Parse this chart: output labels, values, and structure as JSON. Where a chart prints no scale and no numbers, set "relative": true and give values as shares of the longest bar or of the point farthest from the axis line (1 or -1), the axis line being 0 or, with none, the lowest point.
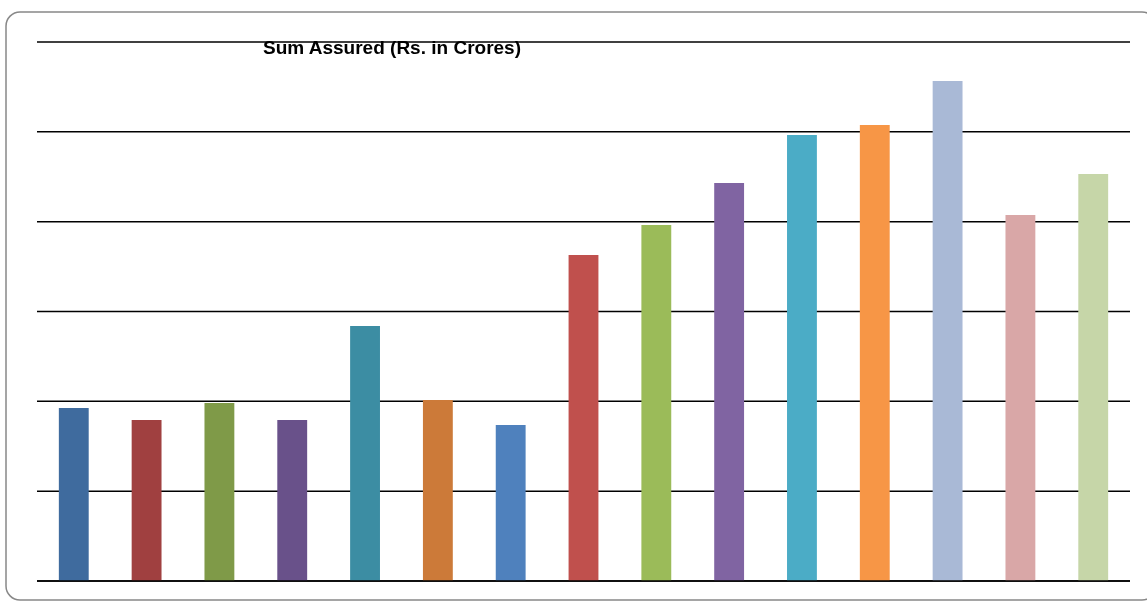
{
  "chart_data": {
    "type": "bar",
    "title": "Sum Assured (Rs. in Crores)",
    "relative": true,
    "grid": true,
    "categories": [
      null,
      null,
      null,
      null,
      null,
      null,
      null,
      null,
      null,
      null,
      null,
      null,
      null,
      null,
      null
    ],
    "values": [
      0.346,
      0.322,
      0.356,
      0.322,
      0.51,
      0.362,
      0.312,
      0.652,
      0.712,
      0.796,
      0.892,
      0.912,
      1,
      0.732,
      0.814
    ],
    "colors": [
      "#3f6b9e",
      "#a04040",
      "#7f9a48",
      "#69518a",
      "#3c8da3",
      "#cc7a39",
      "#4f81bd",
      "#c0504d",
      "#9bbb59",
      "#8064a2",
      "#4bacc6",
      "#f79646",
      "#a9b9d6",
      "#d9a7a7",
      "#c6d6a8"
    ]
  }
}
